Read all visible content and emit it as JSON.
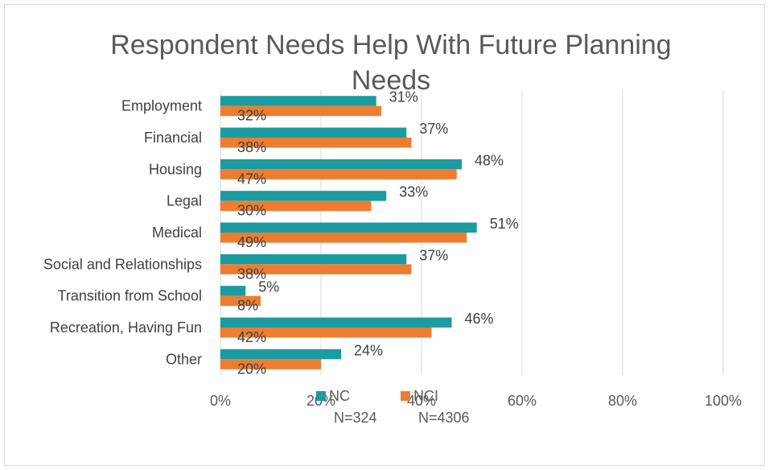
{
  "chart_data": {
    "type": "bar",
    "orientation": "horizontal",
    "title_lines": [
      "Respondent Needs Help With Future Planning",
      "Needs"
    ],
    "categories": [
      "Employment",
      "Financial",
      "Housing",
      "Legal",
      "Medical",
      "Social and Relationships",
      "Transition from School",
      "Recreation, Having Fun",
      "Other"
    ],
    "series": [
      {
        "name": "NC",
        "color": "#1c9ba0",
        "values": [
          31,
          37,
          48,
          33,
          51,
          37,
          5,
          46,
          24
        ],
        "labels": [
          "31%",
          "37%",
          "48%",
          "33%",
          "51%",
          "37%",
          "5%",
          "46%",
          "24%"
        ]
      },
      {
        "name": "NCI",
        "color": "#ed7d31",
        "values": [
          32,
          38,
          47,
          30,
          49,
          38,
          8,
          42,
          20
        ],
        "labels": [
          "32%",
          "38%",
          "47%",
          "30%",
          "49%",
          "38%",
          "8%",
          "42%",
          "20%"
        ]
      }
    ],
    "xlim": [
      0,
      100
    ],
    "x_ticks": [
      0,
      20,
      40,
      60,
      80,
      100
    ],
    "x_tick_labels": [
      "0%",
      "20%",
      "40%",
      "60%",
      "80%",
      "100%"
    ],
    "grid": true,
    "legend_position": "bottom",
    "notes": [
      "N=324",
      "N=4306"
    ]
  }
}
